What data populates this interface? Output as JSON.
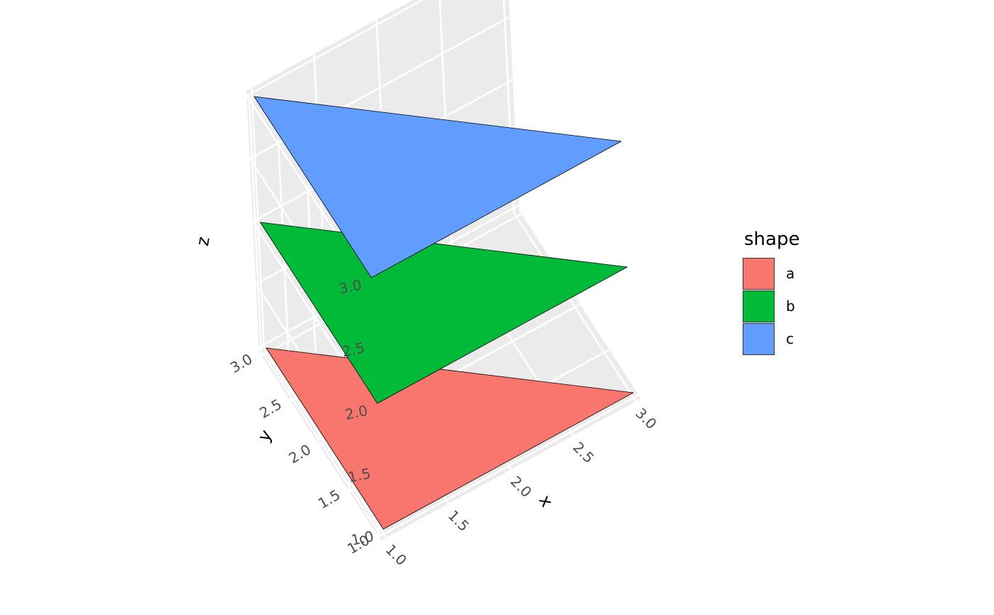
{
  "chart_data": {
    "type": "3d-polygon",
    "axes": {
      "x": {
        "label": "x",
        "range": [
          1.0,
          3.0
        ],
        "ticks": [
          "1.0",
          "1.5",
          "2.0",
          "2.5",
          "3.0"
        ]
      },
      "y": {
        "label": "y",
        "range": [
          1.0,
          3.0
        ],
        "ticks": [
          "1.0",
          "1.5",
          "2.0",
          "2.5",
          "3.0"
        ]
      },
      "z": {
        "label": "z",
        "range": [
          1.0,
          3.0
        ],
        "ticks": [
          "1.0",
          "1.5",
          "2.0",
          "2.5",
          "3.0"
        ]
      }
    },
    "panel_background": "#ebebeb",
    "grid": true,
    "series": [
      {
        "name": "a",
        "color": "#F8766D",
        "z": 1,
        "vertices": [
          [
            1,
            1
          ],
          [
            3,
            1
          ],
          [
            1,
            3
          ]
        ]
      },
      {
        "name": "b",
        "color": "#00BA38",
        "z": 2,
        "vertices": [
          [
            1,
            1
          ],
          [
            3,
            1
          ],
          [
            1,
            3
          ]
        ]
      },
      {
        "name": "c",
        "color": "#619CFF",
        "z": 3,
        "vertices": [
          [
            1,
            1
          ],
          [
            3,
            1
          ],
          [
            1,
            3
          ]
        ]
      }
    ],
    "legend": {
      "title": "shape",
      "placement": "right",
      "items": [
        {
          "label": "a",
          "color": "#F8766D"
        },
        {
          "label": "b",
          "color": "#00BA38"
        },
        {
          "label": "c",
          "color": "#619CFF"
        }
      ]
    }
  }
}
